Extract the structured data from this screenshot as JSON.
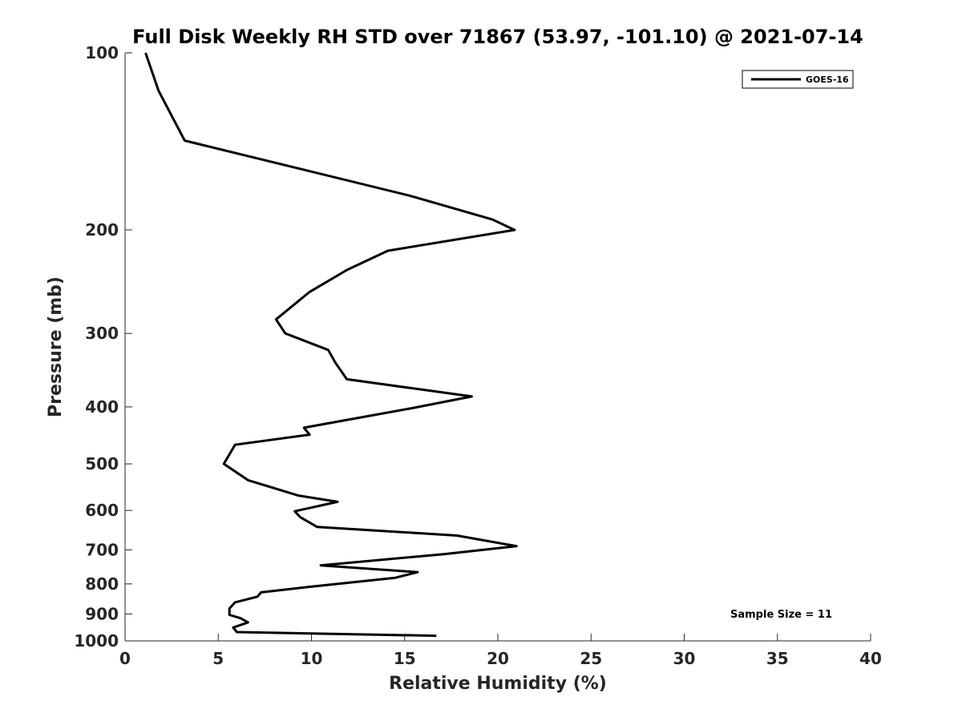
{
  "chart_data": {
    "type": "line",
    "title": "Full Disk Weekly RH STD over 71867 (53.97, -101.10) @ 2021-07-14",
    "xlabel": "Relative Humidity (%)",
    "ylabel": "Pressure (mb)",
    "xlim": [
      0,
      40
    ],
    "ylim": [
      100,
      1000
    ],
    "y_scale": "log",
    "y_reversed": true,
    "xticks": [
      0,
      5,
      10,
      15,
      20,
      25,
      30,
      35,
      40
    ],
    "yticks": [
      100,
      200,
      300,
      400,
      500,
      600,
      700,
      800,
      900,
      1000
    ],
    "grid": false,
    "legend_position": "top-right",
    "annotation": "Sample Size = 11",
    "series": [
      {
        "name": "GOES-16",
        "color": "#000000",
        "points": [
          [
            1.1,
            100
          ],
          [
            1.8,
            116
          ],
          [
            3.2,
            141
          ],
          [
            15.3,
            175
          ],
          [
            19.7,
            192
          ],
          [
            20.9,
            200
          ],
          [
            14.1,
            217
          ],
          [
            11.9,
            234
          ],
          [
            9.9,
            255
          ],
          [
            8.1,
            284
          ],
          [
            8.6,
            300
          ],
          [
            10.9,
            320
          ],
          [
            11.3,
            337
          ],
          [
            11.9,
            359
          ],
          [
            18.6,
            384
          ],
          [
            15.4,
            402
          ],
          [
            9.6,
            434
          ],
          [
            9.9,
            446
          ],
          [
            5.9,
            464
          ],
          [
            5.3,
            500
          ],
          [
            6.6,
            533
          ],
          [
            9.3,
            566
          ],
          [
            11.4,
            580
          ],
          [
            9.1,
            602
          ],
          [
            9.4,
            616
          ],
          [
            10.3,
            640
          ],
          [
            17.8,
            662
          ],
          [
            21.0,
            690
          ],
          [
            17.1,
            712
          ],
          [
            10.5,
            744
          ],
          [
            15.7,
            764
          ],
          [
            14.5,
            781
          ],
          [
            9.8,
            810
          ],
          [
            7.3,
            827
          ],
          [
            7.1,
            841
          ],
          [
            5.9,
            860
          ],
          [
            5.6,
            881
          ],
          [
            5.6,
            903
          ],
          [
            6.2,
            915
          ],
          [
            6.6,
            930
          ],
          [
            5.8,
            949
          ],
          [
            6.0,
            966
          ],
          [
            16.7,
            980
          ]
        ]
      }
    ]
  }
}
